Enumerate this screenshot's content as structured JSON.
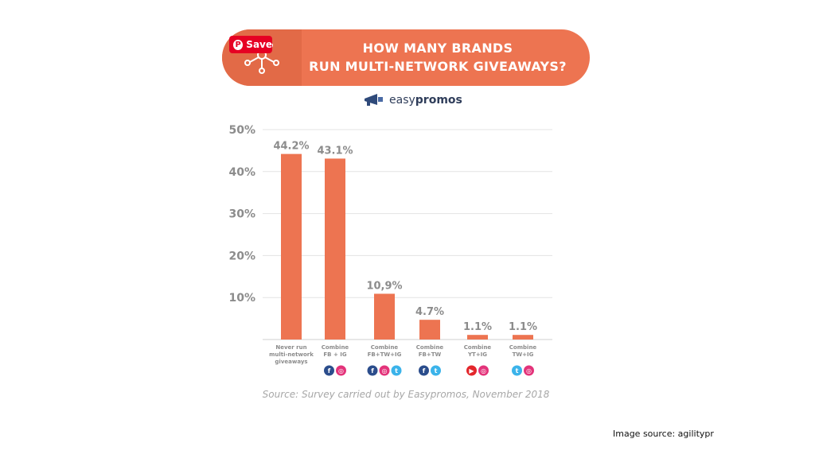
{
  "header": {
    "title_line1": "HOW MANY BRANDS",
    "title_line2": "RUN MULTI-NETWORK GIVEAWAYS?",
    "save_label": "Save"
  },
  "logo": {
    "part1": "easy",
    "part2": "promos"
  },
  "colors": {
    "accent": "#ed7451",
    "bar": "#ed7451",
    "pinterest": "#e60023"
  },
  "chart_data": {
    "type": "bar",
    "title": "HOW MANY BRANDS RUN MULTI-NETWORK GIVEAWAYS?",
    "ylim": [
      0,
      50
    ],
    "yticks": [
      "50%",
      "40%",
      "30%",
      "20%",
      "10%"
    ],
    "ytick_values": [
      50,
      40,
      30,
      20,
      10
    ],
    "categories": [
      "Never run multi-network giveaways",
      "Combine FB + IG",
      "Combine FB+TW+IG",
      "Combine FB+TW",
      "Combine YT+IG",
      "Combine TW+IG"
    ],
    "category_lines": [
      [
        "Never run",
        "multi-network",
        "giveaways"
      ],
      [
        "Combine",
        "FB + IG"
      ],
      [
        "Combine",
        "FB+TW+IG"
      ],
      [
        "Combine",
        "FB+TW"
      ],
      [
        "Combine",
        "YT+IG"
      ],
      [
        "Combine",
        "TW+IG"
      ]
    ],
    "values": [
      44.2,
      43.1,
      10.9,
      4.7,
      1.1,
      1.1
    ],
    "value_labels": [
      "44.2%",
      "43.1%",
      "10,9%",
      "4.7%",
      "1.1%",
      "1.1%"
    ],
    "icons": [
      [],
      [
        "facebook-icon",
        "instagram-icon"
      ],
      [
        "facebook-icon",
        "instagram-icon",
        "twitter-icon"
      ],
      [
        "facebook-icon",
        "twitter-icon"
      ],
      [
        "youtube-icon",
        "instagram-icon"
      ],
      [
        "twitter-icon",
        "instagram-icon"
      ]
    ],
    "grid": true
  },
  "source_text": "Source: Survey carried out by Easypromos, November 2018",
  "image_source": "Image source: agilitypr"
}
